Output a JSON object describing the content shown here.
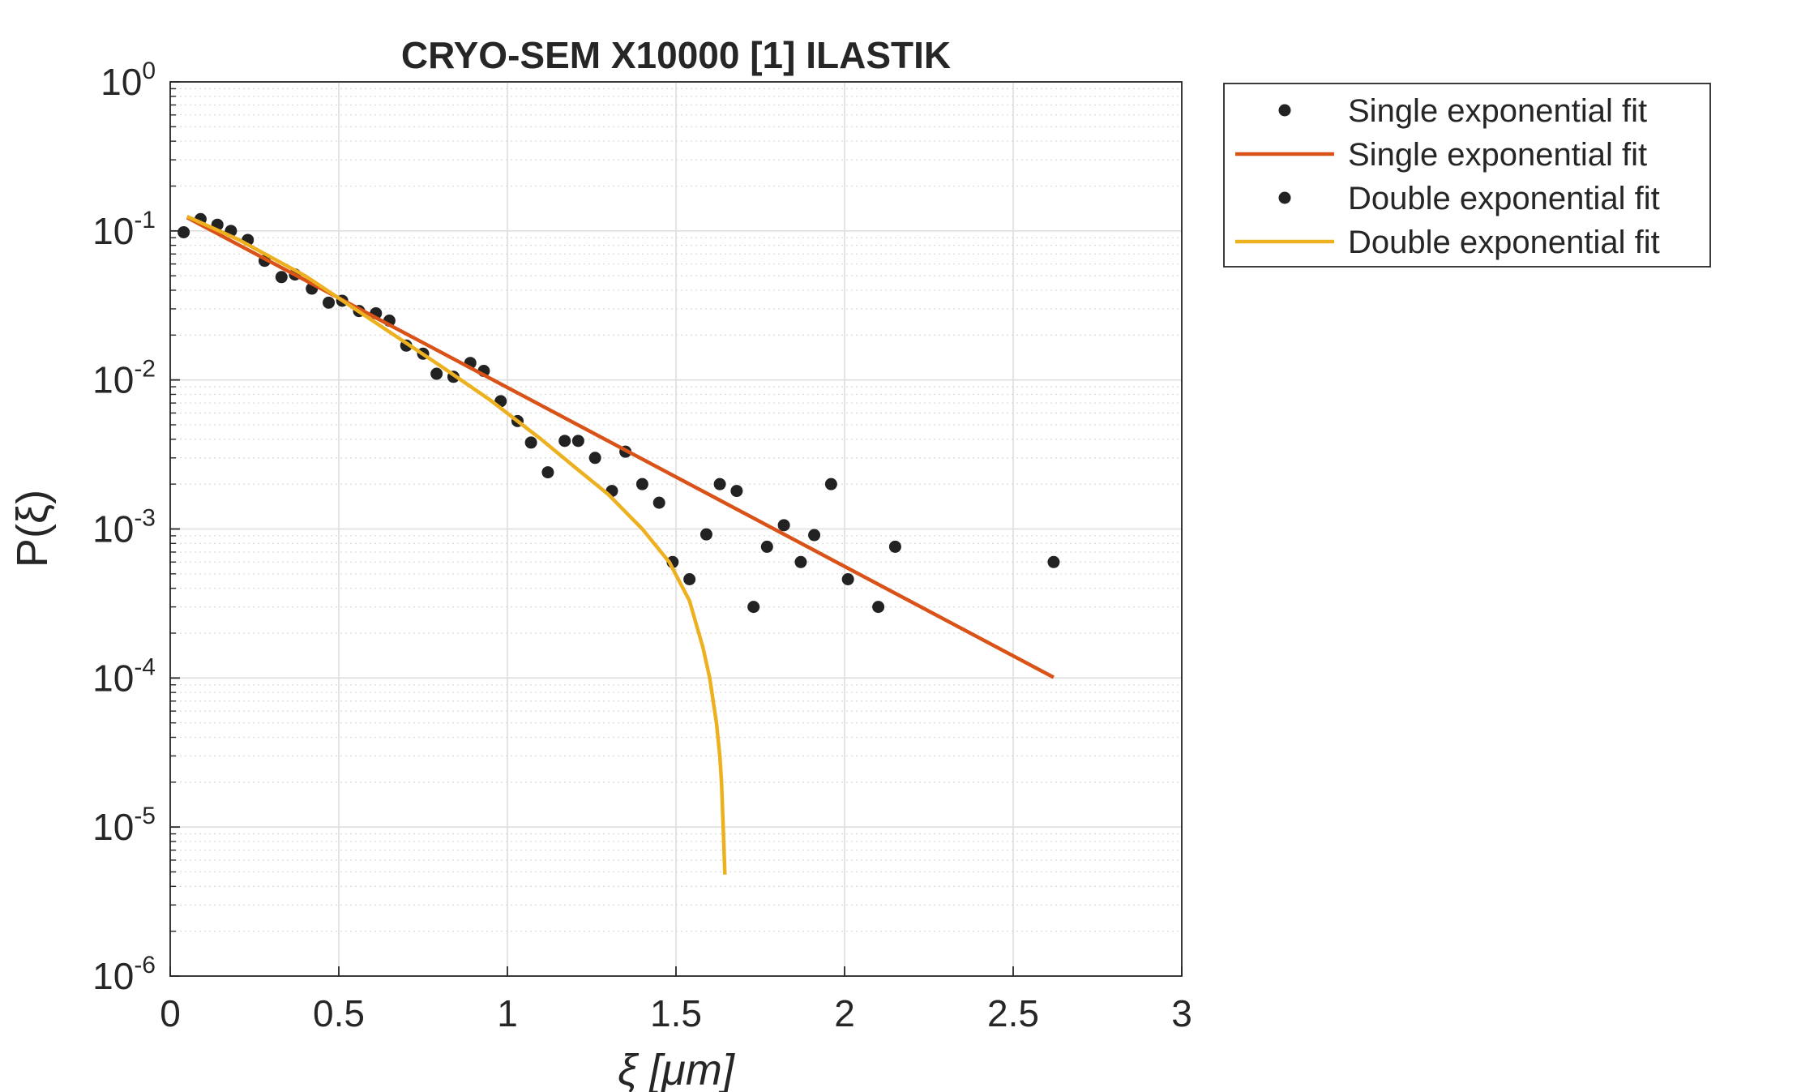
{
  "chart_data": {
    "type": "scatter",
    "title": "CRYO-SEM X10000 [1] ILASTIK",
    "xlabel": "ξ  [μm]",
    "ylabel": "P(ξ)",
    "xlim": [
      0,
      3
    ],
    "ylim": [
      1e-06,
      1
    ],
    "yscale": "log",
    "grid": true,
    "legend_position": "outside-top-right",
    "x_ticks": [
      {
        "value": 0,
        "label": "0"
      },
      {
        "value": 0.5,
        "label": "0.5"
      },
      {
        "value": 1,
        "label": "1"
      },
      {
        "value": 1.5,
        "label": "1.5"
      },
      {
        "value": 2,
        "label": "2"
      },
      {
        "value": 2.5,
        "label": "2.5"
      },
      {
        "value": 3,
        "label": "3"
      }
    ],
    "y_ticks": [
      {
        "exponent": 0,
        "base": "10",
        "sup": "0"
      },
      {
        "exponent": -1,
        "base": "10",
        "sup": "-1"
      },
      {
        "exponent": -2,
        "base": "10",
        "sup": "-2"
      },
      {
        "exponent": -3,
        "base": "10",
        "sup": "-3"
      },
      {
        "exponent": -4,
        "base": "10",
        "sup": "-4"
      },
      {
        "exponent": -5,
        "base": "10",
        "sup": "-5"
      },
      {
        "exponent": -6,
        "base": "10",
        "sup": "-6"
      }
    ],
    "series": [
      {
        "name": "Single exponential fit",
        "kind": "points",
        "color": "#222222",
        "x": [
          0.04,
          0.09,
          0.14,
          0.18,
          0.23,
          0.28,
          0.33,
          0.37,
          0.42,
          0.47,
          0.51,
          0.56,
          0.61,
          0.65,
          0.7,
          0.75,
          0.79,
          0.84,
          0.89,
          0.93,
          0.98,
          1.03,
          1.07,
          1.12,
          1.17,
          1.21,
          1.26,
          1.31,
          1.35,
          1.4,
          1.45,
          1.49,
          1.54,
          1.59,
          1.63,
          1.68,
          1.73,
          1.77,
          1.82,
          1.87,
          1.91,
          1.96,
          2.01,
          2.1,
          2.15,
          2.62
        ],
        "y": [
          0.098,
          0.12,
          0.11,
          0.1,
          0.087,
          0.063,
          0.049,
          0.051,
          0.041,
          0.033,
          0.034,
          0.029,
          0.028,
          0.025,
          0.017,
          0.015,
          0.011,
          0.0105,
          0.013,
          0.0115,
          0.0072,
          0.0053,
          0.0038,
          0.0024,
          0.0039,
          0.0039,
          0.003,
          0.0018,
          0.0033,
          0.002,
          0.0015,
          0.0006,
          0.00046,
          0.00092,
          0.002,
          0.0018,
          0.0003,
          0.00076,
          0.00106,
          0.0006,
          0.00091,
          0.002,
          0.00046,
          0.0003,
          0.00076,
          0.0006
        ]
      },
      {
        "name": "Single exponential fit",
        "kind": "line",
        "color": "#D95319",
        "x": [
          0.05,
          2.62
        ],
        "y": [
          0.123,
          0.000101
        ]
      },
      {
        "name": "Double exponential fit",
        "kind": "points",
        "color": "#222222",
        "x": [],
        "y": []
      },
      {
        "name": "Double exponential fit",
        "kind": "line",
        "color": "#EDB120",
        "x": [
          0.05,
          0.2,
          0.4,
          0.6,
          0.8,
          0.95,
          1.1,
          1.2,
          1.3,
          1.4,
          1.48,
          1.54,
          1.58,
          1.6,
          1.62,
          1.63,
          1.635,
          1.64,
          1.645
        ],
        "y": [
          0.125,
          0.088,
          0.05,
          0.025,
          0.0125,
          0.0073,
          0.004,
          0.0026,
          0.0017,
          0.001,
          0.0006,
          0.00033,
          0.00016,
          0.0001,
          5e-05,
          3e-05,
          2e-05,
          1e-05,
          4.8e-06
        ]
      }
    ]
  }
}
